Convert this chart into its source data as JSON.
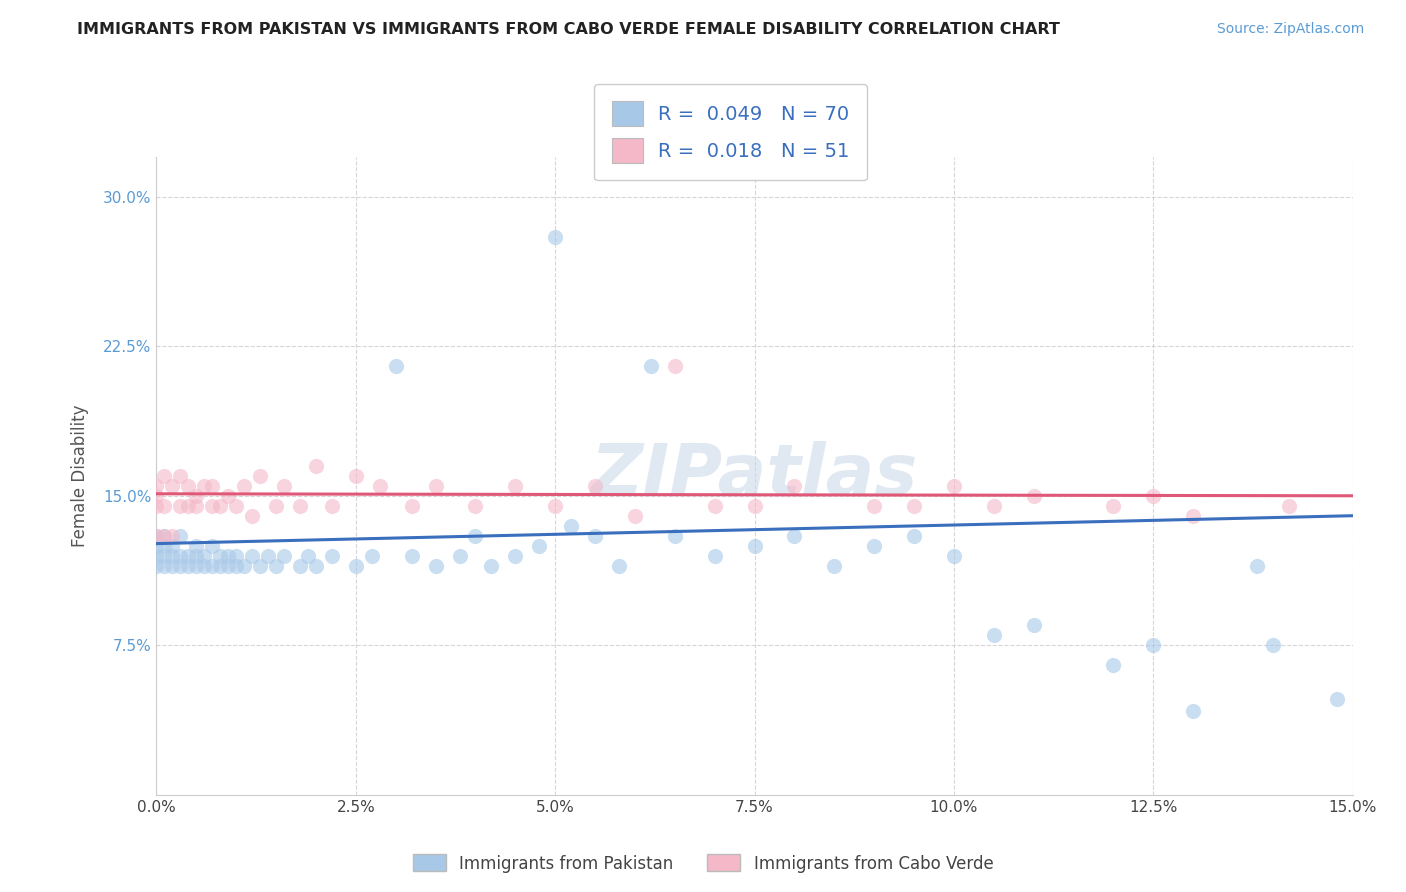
{
  "title": "IMMIGRANTS FROM PAKISTAN VS IMMIGRANTS FROM CABO VERDE FEMALE DISABILITY CORRELATION CHART",
  "source": "Source: ZipAtlas.com",
  "ylabel": "Female Disability",
  "xlim": [
    0.0,
    0.15
  ],
  "ylim": [
    0.0,
    0.32
  ],
  "yticks": [
    0.075,
    0.15,
    0.225,
    0.3
  ],
  "ytick_labels": [
    "7.5%",
    "15.0%",
    "22.5%",
    "30.0%"
  ],
  "xticks": [
    0.0,
    0.025,
    0.05,
    0.075,
    0.1,
    0.125,
    0.15
  ],
  "color_pakistan": "#a8c8e8",
  "color_caboverde": "#f4b8c8",
  "line_color_pakistan": "#3a6fbe",
  "line_color_caboverde": "#e05878",
  "background_color": "#ffffff",
  "grid_color": "#cccccc",
  "legend_label1": "R =  0.049   N = 70",
  "legend_label2": "R =  0.018   N = 51",
  "bottom_label1": "Immigrants from Pakistan",
  "bottom_label2": "Immigrants from Cabo Verde",
  "pak_x": [
    0.0,
    0.0,
    0.0,
    0.0,
    0.001,
    0.001,
    0.001,
    0.001,
    0.002,
    0.002,
    0.002,
    0.003,
    0.003,
    0.003,
    0.004,
    0.004,
    0.005,
    0.005,
    0.005,
    0.006,
    0.006,
    0.007,
    0.007,
    0.008,
    0.008,
    0.009,
    0.009,
    0.01,
    0.01,
    0.011,
    0.012,
    0.013,
    0.014,
    0.015,
    0.016,
    0.018,
    0.019,
    0.02,
    0.022,
    0.025,
    0.027,
    0.03,
    0.032,
    0.035,
    0.038,
    0.04,
    0.042,
    0.045,
    0.048,
    0.05,
    0.052,
    0.055,
    0.058,
    0.062,
    0.065,
    0.07,
    0.075,
    0.08,
    0.085,
    0.09,
    0.095,
    0.1,
    0.105,
    0.11,
    0.12,
    0.125,
    0.13,
    0.138,
    0.14,
    0.148
  ],
  "pak_y": [
    0.12,
    0.125,
    0.13,
    0.115,
    0.12,
    0.115,
    0.13,
    0.125,
    0.115,
    0.12,
    0.125,
    0.115,
    0.12,
    0.13,
    0.115,
    0.12,
    0.115,
    0.12,
    0.125,
    0.115,
    0.12,
    0.115,
    0.125,
    0.115,
    0.12,
    0.115,
    0.12,
    0.115,
    0.12,
    0.115,
    0.12,
    0.115,
    0.12,
    0.115,
    0.12,
    0.115,
    0.12,
    0.115,
    0.12,
    0.115,
    0.12,
    0.215,
    0.12,
    0.115,
    0.12,
    0.13,
    0.115,
    0.12,
    0.125,
    0.28,
    0.135,
    0.13,
    0.115,
    0.215,
    0.13,
    0.12,
    0.125,
    0.13,
    0.115,
    0.125,
    0.13,
    0.12,
    0.08,
    0.085,
    0.065,
    0.075,
    0.042,
    0.115,
    0.075,
    0.048
  ],
  "cv_x": [
    0.0,
    0.0,
    0.0,
    0.0,
    0.001,
    0.001,
    0.001,
    0.002,
    0.002,
    0.003,
    0.003,
    0.004,
    0.004,
    0.005,
    0.005,
    0.006,
    0.007,
    0.007,
    0.008,
    0.009,
    0.01,
    0.011,
    0.012,
    0.013,
    0.015,
    0.016,
    0.018,
    0.02,
    0.022,
    0.025,
    0.028,
    0.032,
    0.035,
    0.04,
    0.045,
    0.05,
    0.055,
    0.06,
    0.065,
    0.07,
    0.075,
    0.08,
    0.09,
    0.095,
    0.1,
    0.105,
    0.11,
    0.12,
    0.125,
    0.13,
    0.142
  ],
  "cv_y": [
    0.13,
    0.145,
    0.15,
    0.155,
    0.13,
    0.145,
    0.16,
    0.13,
    0.155,
    0.145,
    0.16,
    0.145,
    0.155,
    0.145,
    0.15,
    0.155,
    0.145,
    0.155,
    0.145,
    0.15,
    0.145,
    0.155,
    0.14,
    0.16,
    0.145,
    0.155,
    0.145,
    0.165,
    0.145,
    0.16,
    0.155,
    0.145,
    0.155,
    0.145,
    0.155,
    0.145,
    0.155,
    0.14,
    0.215,
    0.145,
    0.145,
    0.155,
    0.145,
    0.145,
    0.155,
    0.145,
    0.15,
    0.145,
    0.15,
    0.14,
    0.145
  ],
  "pak_line_x0": 0.0,
  "pak_line_y0": 0.126,
  "pak_line_x1": 0.15,
  "pak_line_y1": 0.14,
  "cv_line_x0": 0.0,
  "cv_line_y0": 0.151,
  "cv_line_x1": 0.15,
  "cv_line_y1": 0.15
}
